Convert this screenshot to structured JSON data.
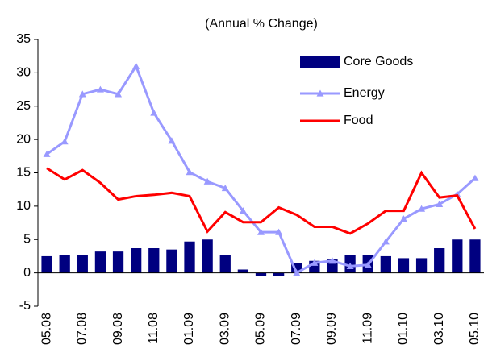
{
  "chart_data": {
    "type": "bar_line",
    "title": "(Annual % Change)",
    "categories": [
      "05.08",
      null,
      "07.08",
      null,
      "09.08",
      null,
      "11.08",
      null,
      "01.09",
      null,
      "03.09",
      null,
      "05.09",
      null,
      "07.09",
      null,
      "09.09",
      null,
      "11.09",
      null,
      "01.10",
      null,
      "03.10",
      null,
      "05.10"
    ],
    "series": [
      {
        "name": "Core Goods",
        "type": "bar",
        "color": "#000080",
        "values": [
          2.5,
          2.7,
          2.7,
          3.2,
          3.2,
          3.7,
          3.7,
          3.5,
          4.7,
          5.0,
          2.7,
          0.5,
          -0.5,
          -0.5,
          1.5,
          1.8,
          2.0,
          2.7,
          2.7,
          2.5,
          2.2,
          2.2,
          3.7,
          5.0,
          5.0
        ]
      },
      {
        "name": "Energy",
        "type": "line",
        "marker": "triangle",
        "color": "#9999ff",
        "values": [
          17.8,
          19.7,
          26.8,
          27.5,
          26.8,
          31.0,
          24.0,
          19.8,
          15.1,
          13.7,
          12.7,
          9.3,
          6.1,
          6.1,
          0.0,
          1.5,
          1.8,
          1.0,
          1.2,
          4.7,
          8.1,
          9.6,
          10.3,
          11.8,
          14.2
        ]
      },
      {
        "name": "Food",
        "type": "line",
        "color": "#ff0000",
        "values": [
          15.7,
          14.0,
          15.4,
          13.5,
          11.0,
          11.5,
          11.7,
          12.0,
          11.5,
          6.2,
          9.1,
          7.6,
          7.6,
          9.8,
          8.7,
          6.9,
          6.9,
          5.9,
          7.4,
          9.3,
          9.3,
          15.0,
          11.3,
          11.6,
          6.6
        ]
      }
    ],
    "ylim": [
      -5,
      35
    ],
    "yticks": [
      -5,
      0,
      5,
      10,
      15,
      20,
      25,
      30,
      35
    ],
    "grid": false,
    "legend": "top-right"
  }
}
